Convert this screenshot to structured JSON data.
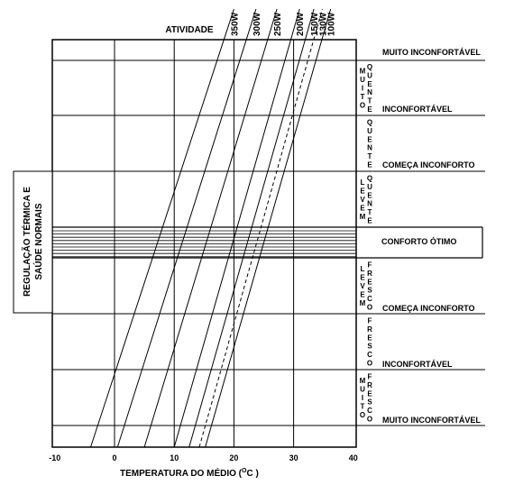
{
  "chart_data": {
    "type": "line",
    "xlabel": "TEMPERATURA DO MÉDIO (",
    "xlabel_sup": "O",
    "xlabel_end": "C )",
    "xlim": [
      -10,
      40
    ],
    "x_ticks": [
      -10,
      0,
      10,
      20,
      30,
      40
    ],
    "x_tick_labels": [
      "-10",
      "0",
      "10",
      "20",
      "30",
      "40"
    ],
    "top_title": "ATIVIDADE",
    "series": [
      {
        "name": "350W",
        "dashed": false,
        "x_bottom": -4,
        "x_top": 20.0
      },
      {
        "name": "300W",
        "dashed": false,
        "x_bottom": 0.5,
        "x_top": 23.7
      },
      {
        "name": "250W",
        "dashed": false,
        "x_bottom": 5,
        "x_top": 27.2
      },
      {
        "name": "200W",
        "dashed": false,
        "x_bottom": 10,
        "x_top": 31.0
      },
      {
        "name": "150W",
        "dashed": false,
        "x_bottom": 12.5,
        "x_top": 33.4
      },
      {
        "name": "130W",
        "dashed": true,
        "x_bottom": 14.2,
        "x_top": 34.8
      },
      {
        "name": "100W",
        "dashed": false,
        "x_bottom": 15.2,
        "x_top": 36.2
      }
    ],
    "left_box_label_line1": "REGULAÇÃO TÉRMICA E",
    "left_box_label_line2": "SAÚDE NORMAIS",
    "band_labels": [
      {
        "top": "MUITO",
        "side": "QUENTE"
      },
      {
        "top": "",
        "side": "QUENTE"
      },
      {
        "top": "LEVEM",
        "side": "QUENTE"
      },
      {
        "top": "LEVEM",
        "side": "FRESCO"
      },
      {
        "top": "",
        "side": "FRESCO"
      },
      {
        "top": "MUITO",
        "side": "FRESCO"
      }
    ],
    "comfort_labels": [
      "MUITO INCONFORTÁVEL",
      "INCONFORTÁVEL",
      "COMEÇA INCONFORTO",
      "CONFORTO ÓTIMO",
      "COMEÇA INCONFORTO",
      "INCONFORTÁVEL",
      "MUITO INCONFORTÁVEL"
    ]
  }
}
